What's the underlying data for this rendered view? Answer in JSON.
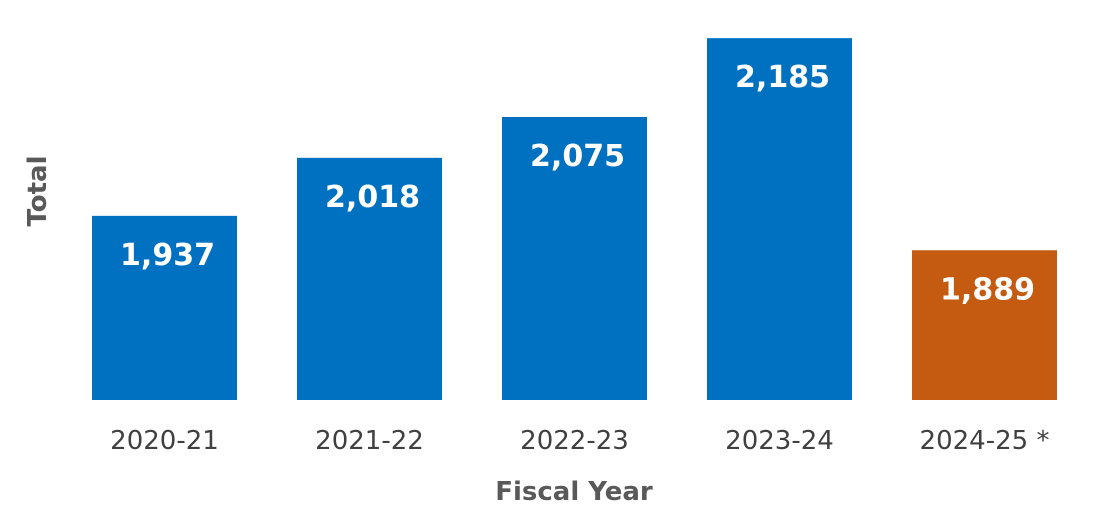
{
  "chart_data": {
    "type": "bar",
    "title": "",
    "xlabel": "Fiscal Year",
    "ylabel": "Total",
    "categories": [
      "2020-21",
      "2021-22",
      "2022-23",
      "2023-24",
      "2024-25 *"
    ],
    "values": [
      1937,
      2018,
      2075,
      2185,
      1889
    ],
    "value_labels": [
      "1,937",
      "2,018",
      "2,075",
      "2,185",
      "1,889"
    ],
    "bar_colors": [
      "#0070C0",
      "#0070C0",
      "#0070C0",
      "#0070C0",
      "#C55A11"
    ],
    "ylim": [
      1680,
      2195
    ],
    "grid": false,
    "legend": "none"
  }
}
